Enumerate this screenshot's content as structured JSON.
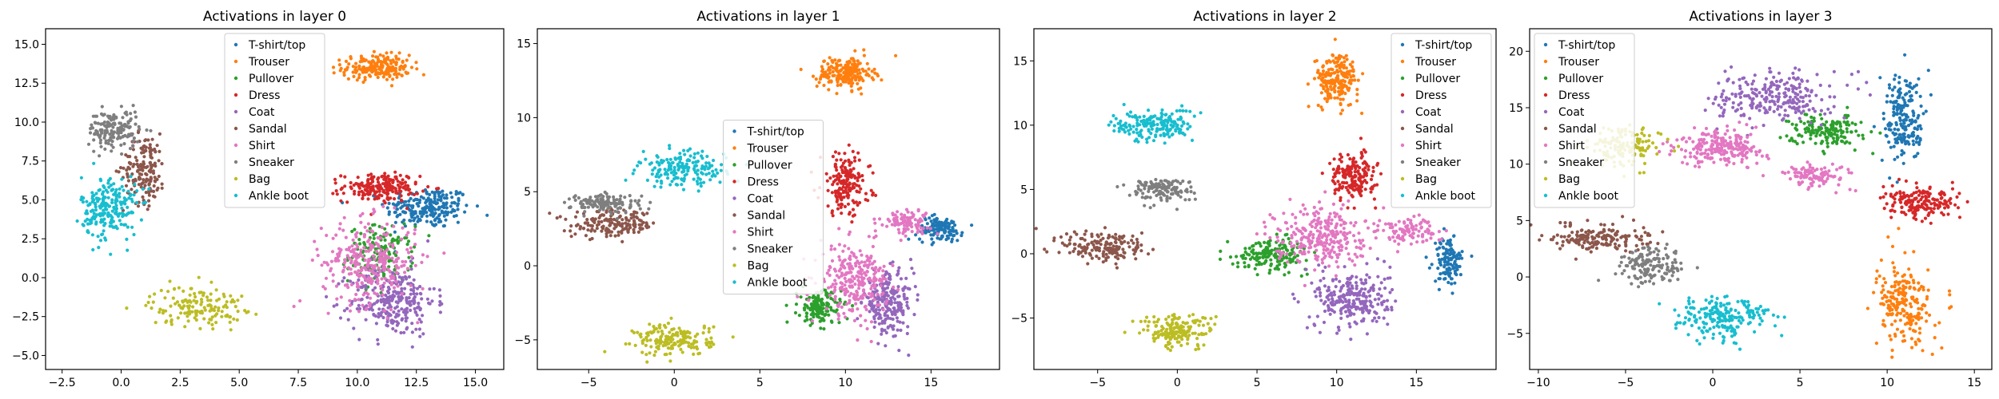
{
  "colors": [
    "#1f77b4",
    "#ff7f0e",
    "#2ca02c",
    "#d62728",
    "#9467bd",
    "#8c564b",
    "#e377c2",
    "#7f7f7f",
    "#bcbd22",
    "#17becf"
  ],
  "chart_data": [
    {
      "type": "scatter",
      "title": "Activations in layer 0",
      "xlabel": "",
      "ylabel": "",
      "xlim": [
        -3.2,
        16.2
      ],
      "ylim": [
        -5.9,
        16.0
      ],
      "xticks": [
        -2.5,
        0.0,
        2.5,
        5.0,
        7.5,
        10.0,
        12.5,
        15.0
      ],
      "xtick_labels": [
        "−2.5",
        "0.0",
        "2.5",
        "5.0",
        "7.5",
        "10.0",
        "12.5",
        "15.0"
      ],
      "yticks": [
        -5.0,
        -2.5,
        0.0,
        2.5,
        5.0,
        7.5,
        10.0,
        12.5,
        15.0
      ],
      "ytick_labels": [
        "−5.0",
        "−2.5",
        "0.0",
        "2.5",
        "5.0",
        "7.5",
        "10.0",
        "12.5",
        "15.0"
      ],
      "legend": {
        "position": "upper center",
        "entries": [
          "T-shirt/top",
          "Trouser",
          "Pullover",
          "Dress",
          "Coat",
          "Sandal",
          "Shirt",
          "Sneaker",
          "Bag",
          "Ankle boot"
        ]
      },
      "series": [
        {
          "name": "T-shirt/top",
          "clusters": [
            {
              "cx": 13.0,
              "cy": 4.5,
              "rx": 2.0,
              "ry": 1.5,
              "n": 220
            }
          ]
        },
        {
          "name": "Trouser",
          "clusters": [
            {
              "cx": 10.8,
              "cy": 13.5,
              "rx": 1.6,
              "ry": 0.9,
              "n": 200
            }
          ]
        },
        {
          "name": "Pullover",
          "clusters": [
            {
              "cx": 11.0,
              "cy": 1.5,
              "rx": 1.5,
              "ry": 2.0,
              "n": 150
            }
          ]
        },
        {
          "name": "Dress",
          "clusters": [
            {
              "cx": 11.0,
              "cy": 5.8,
              "rx": 1.8,
              "ry": 1.0,
              "n": 200
            }
          ]
        },
        {
          "name": "Coat",
          "clusters": [
            {
              "cx": 11.5,
              "cy": -1.5,
              "rx": 2.0,
              "ry": 2.5,
              "n": 280
            }
          ]
        },
        {
          "name": "Sandal",
          "clusters": [
            {
              "cx": 1.0,
              "cy": 7.0,
              "rx": 1.0,
              "ry": 2.5,
              "n": 160
            }
          ]
        },
        {
          "name": "Shirt",
          "clusters": [
            {
              "cx": 10.5,
              "cy": 1.0,
              "rx": 2.2,
              "ry": 3.0,
              "n": 300
            }
          ]
        },
        {
          "name": "Sneaker",
          "clusters": [
            {
              "cx": -0.3,
              "cy": 9.5,
              "rx": 1.2,
              "ry": 1.4,
              "n": 160
            }
          ]
        },
        {
          "name": "Bag",
          "clusters": [
            {
              "cx": 3.2,
              "cy": -1.8,
              "rx": 2.2,
              "ry": 1.4,
              "n": 150
            }
          ]
        },
        {
          "name": "Ankle boot",
          "clusters": [
            {
              "cx": -0.5,
              "cy": 4.5,
              "rx": 1.3,
              "ry": 2.3,
              "n": 220
            }
          ]
        }
      ]
    },
    {
      "type": "scatter",
      "title": "Activations in layer 1",
      "xlabel": "",
      "ylabel": "",
      "xlim": [
        -8.0,
        19.0
      ],
      "ylim": [
        -7.0,
        16.0
      ],
      "xticks": [
        -5,
        0,
        5,
        10,
        15
      ],
      "xtick_labels": [
        "−5",
        "0",
        "5",
        "10",
        "15"
      ],
      "yticks": [
        -5,
        0,
        5,
        10,
        15
      ],
      "ytick_labels": [
        "−5",
        "0",
        "5",
        "10",
        "15"
      ],
      "legend": {
        "position": "center",
        "entries": [
          "T-shirt/top",
          "Trouser",
          "Pullover",
          "Dress",
          "Coat",
          "Sandal",
          "Shirt",
          "Sneaker",
          "Bag",
          "Ankle boot"
        ]
      },
      "series": [
        {
          "name": "T-shirt/top",
          "clusters": [
            {
              "cx": 15.5,
              "cy": 2.5,
              "rx": 1.5,
              "ry": 0.9,
              "n": 130
            }
          ]
        },
        {
          "name": "Trouser",
          "clusters": [
            {
              "cx": 10.0,
              "cy": 13.0,
              "rx": 1.8,
              "ry": 1.2,
              "n": 200
            }
          ]
        },
        {
          "name": "Pullover",
          "clusters": [
            {
              "cx": 8.5,
              "cy": -2.8,
              "rx": 1.4,
              "ry": 1.3,
              "n": 150
            }
          ]
        },
        {
          "name": "Dress",
          "clusters": [
            {
              "cx": 10.0,
              "cy": 5.5,
              "rx": 1.6,
              "ry": 2.3,
              "n": 180
            }
          ]
        },
        {
          "name": "Coat",
          "clusters": [
            {
              "cx": 12.5,
              "cy": -2.5,
              "rx": 1.6,
              "ry": 2.3,
              "n": 220
            }
          ]
        },
        {
          "name": "Sandal",
          "clusters": [
            {
              "cx": -3.5,
              "cy": 2.8,
              "rx": 2.8,
              "ry": 1.0,
              "n": 170
            }
          ]
        },
        {
          "name": "Shirt",
          "clusters": [
            {
              "cx": 10.5,
              "cy": -1.0,
              "rx": 2.2,
              "ry": 2.6,
              "n": 260
            },
            {
              "cx": 13.5,
              "cy": 3.0,
              "rx": 1.6,
              "ry": 0.9,
              "n": 100
            }
          ]
        },
        {
          "name": "Sneaker",
          "clusters": [
            {
              "cx": -4.0,
              "cy": 4.2,
              "rx": 2.2,
              "ry": 0.7,
              "n": 140
            }
          ]
        },
        {
          "name": "Bag",
          "clusters": [
            {
              "cx": 0.0,
              "cy": -5.0,
              "rx": 2.5,
              "ry": 1.2,
              "n": 170
            }
          ]
        },
        {
          "name": "Ankle boot",
          "clusters": [
            {
              "cx": 0.5,
              "cy": 6.5,
              "rx": 2.8,
              "ry": 1.3,
              "n": 180
            }
          ]
        }
      ]
    },
    {
      "type": "scatter",
      "title": "Activations in layer 2",
      "xlabel": "",
      "ylabel": "",
      "xlim": [
        -9.0,
        20.0
      ],
      "ylim": [
        -9.0,
        17.5
      ],
      "xticks": [
        -5,
        0,
        5,
        10,
        15
      ],
      "xtick_labels": [
        "−5",
        "0",
        "5",
        "10",
        "15"
      ],
      "yticks": [
        -5,
        0,
        5,
        10,
        15
      ],
      "ytick_labels": [
        "−5",
        "0",
        "5",
        "10",
        "15"
      ],
      "legend": {
        "position": "upper right",
        "entries": [
          "T-shirt/top",
          "Trouser",
          "Pullover",
          "Dress",
          "Coat",
          "Sandal",
          "Shirt",
          "Sneaker",
          "Bag",
          "Ankle boot"
        ]
      },
      "series": [
        {
          "name": "T-shirt/top",
          "clusters": [
            {
              "cx": 17.0,
              "cy": -0.5,
              "rx": 1.0,
              "ry": 2.0,
              "n": 120
            }
          ]
        },
        {
          "name": "Trouser",
          "clusters": [
            {
              "cx": 10.0,
              "cy": 13.5,
              "rx": 1.5,
              "ry": 2.3,
              "n": 200
            }
          ]
        },
        {
          "name": "Pullover",
          "clusters": [
            {
              "cx": 6.0,
              "cy": 0.0,
              "rx": 2.5,
              "ry": 1.3,
              "n": 180
            }
          ]
        },
        {
          "name": "Dress",
          "clusters": [
            {
              "cx": 11.0,
              "cy": 6.0,
              "rx": 1.6,
              "ry": 2.0,
              "n": 180
            }
          ]
        },
        {
          "name": "Coat",
          "clusters": [
            {
              "cx": 11.0,
              "cy": -3.5,
              "rx": 2.6,
              "ry": 2.5,
              "n": 260
            }
          ]
        },
        {
          "name": "Sandal",
          "clusters": [
            {
              "cx": -4.5,
              "cy": 0.5,
              "rx": 3.0,
              "ry": 1.5,
              "n": 170
            }
          ]
        },
        {
          "name": "Shirt",
          "clusters": [
            {
              "cx": 9.0,
              "cy": 1.5,
              "rx": 3.2,
              "ry": 2.5,
              "n": 280
            },
            {
              "cx": 14.5,
              "cy": 1.8,
              "rx": 2.0,
              "ry": 1.2,
              "n": 100
            }
          ]
        },
        {
          "name": "Sneaker",
          "clusters": [
            {
              "cx": -1.0,
              "cy": 5.0,
              "rx": 2.2,
              "ry": 1.0,
              "n": 140
            }
          ]
        },
        {
          "name": "Bag",
          "clusters": [
            {
              "cx": 0.0,
              "cy": -6.0,
              "rx": 2.5,
              "ry": 1.4,
              "n": 180
            }
          ]
        },
        {
          "name": "Ankle boot",
          "clusters": [
            {
              "cx": -1.5,
              "cy": 10.0,
              "rx": 2.8,
              "ry": 1.4,
              "n": 180
            }
          ]
        }
      ]
    },
    {
      "type": "scatter",
      "title": "Activations in layer 3",
      "xlabel": "",
      "ylabel": "",
      "xlim": [
        -10.5,
        16.0
      ],
      "ylim": [
        -8.2,
        22.0
      ],
      "xticks": [
        -10,
        -5,
        0,
        5,
        10,
        15
      ],
      "xtick_labels": [
        "−10",
        "−5",
        "0",
        "5",
        "10",
        "15"
      ],
      "yticks": [
        -5,
        0,
        5,
        10,
        15,
        20
      ],
      "ytick_labels": [
        "−5",
        "0",
        "5",
        "10",
        "15",
        "20"
      ],
      "legend": {
        "position": "upper left",
        "entries": [
          "T-shirt/top",
          "Trouser",
          "Pullover",
          "Dress",
          "Coat",
          "Sandal",
          "Shirt",
          "Sneaker",
          "Bag",
          "Ankle boot"
        ]
      },
      "series": [
        {
          "name": "T-shirt/top",
          "clusters": [
            {
              "cx": 11.0,
              "cy": 14.0,
              "rx": 1.3,
              "ry": 4.5,
              "n": 200
            }
          ]
        },
        {
          "name": "Trouser",
          "clusters": [
            {
              "cx": 11.0,
              "cy": -2.5,
              "rx": 1.8,
              "ry": 4.0,
              "n": 220
            }
          ]
        },
        {
          "name": "Pullover",
          "clusters": [
            {
              "cx": 6.5,
              "cy": 13.0,
              "rx": 2.2,
              "ry": 1.6,
              "n": 160
            }
          ]
        },
        {
          "name": "Dress",
          "clusters": [
            {
              "cx": 12.0,
              "cy": 6.5,
              "rx": 2.4,
              "ry": 1.5,
              "n": 180
            }
          ]
        },
        {
          "name": "Coat",
          "clusters": [
            {
              "cx": 3.5,
              "cy": 16.0,
              "rx": 3.8,
              "ry": 2.5,
              "n": 250
            }
          ]
        },
        {
          "name": "Sandal",
          "clusters": [
            {
              "cx": -6.5,
              "cy": 3.5,
              "rx": 3.2,
              "ry": 1.3,
              "n": 180
            }
          ]
        },
        {
          "name": "Shirt",
          "clusters": [
            {
              "cx": 0.5,
              "cy": 11.5,
              "rx": 2.8,
              "ry": 1.8,
              "n": 230
            },
            {
              "cx": 6.0,
              "cy": 9.0,
              "rx": 2.0,
              "ry": 1.2,
              "n": 100
            }
          ]
        },
        {
          "name": "Sneaker",
          "clusters": [
            {
              "cx": -3.5,
              "cy": 1.0,
              "rx": 2.2,
              "ry": 1.8,
              "n": 150
            }
          ]
        },
        {
          "name": "Bag",
          "clusters": [
            {
              "cx": -5.0,
              "cy": 11.5,
              "rx": 2.2,
              "ry": 2.0,
              "n": 150
            }
          ]
        },
        {
          "name": "Ankle boot",
          "clusters": [
            {
              "cx": 0.5,
              "cy": -3.5,
              "rx": 3.0,
              "ry": 2.2,
              "n": 200
            }
          ]
        }
      ]
    }
  ]
}
